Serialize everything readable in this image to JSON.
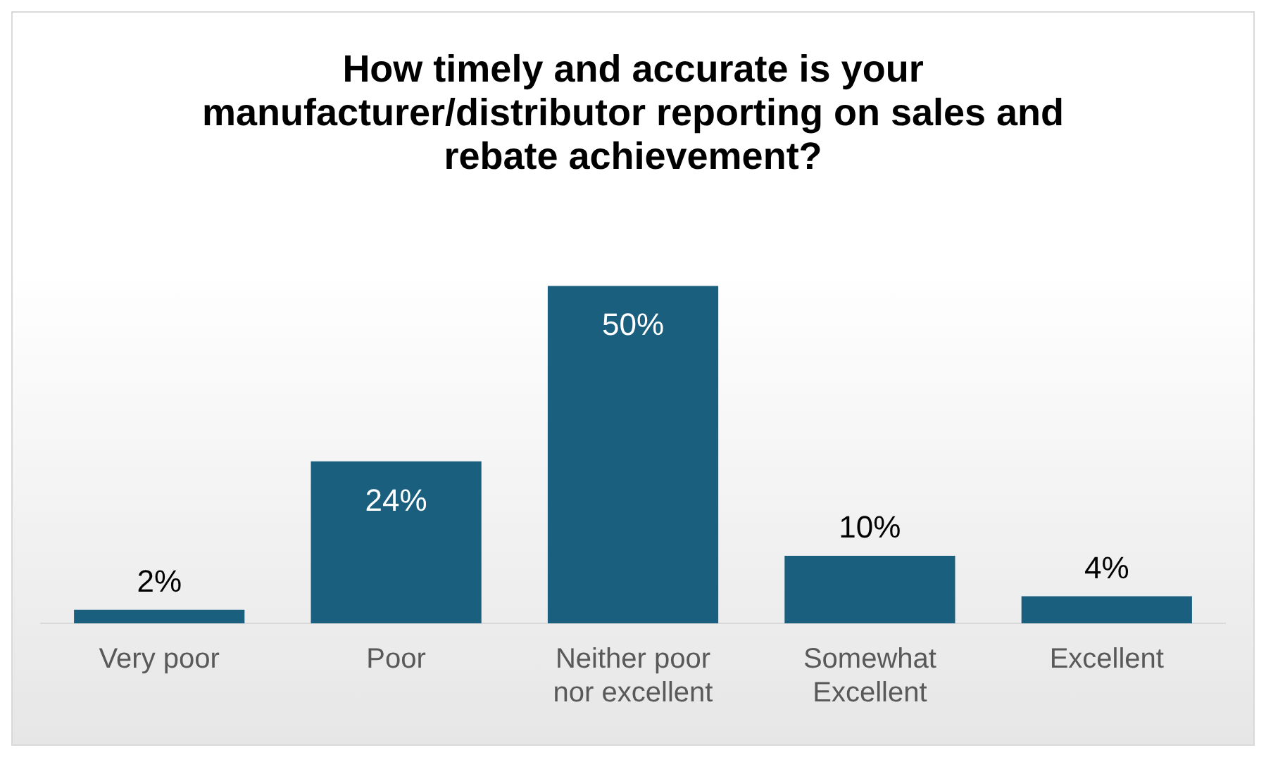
{
  "chart_data": {
    "type": "bar",
    "title": "How timely and accurate is your manufacturer/distributor reporting on sales and rebate achievement?",
    "categories": [
      "Very poor",
      "Poor",
      "Neither poor nor excellent",
      "Somewhat Excellent",
      "Excellent"
    ],
    "values": [
      2,
      24,
      50,
      10,
      4
    ],
    "value_labels": [
      "2%",
      "24%",
      "50%",
      "10%",
      "4%"
    ],
    "color": "#1b5f7f",
    "grid": false,
    "legend": false
  }
}
